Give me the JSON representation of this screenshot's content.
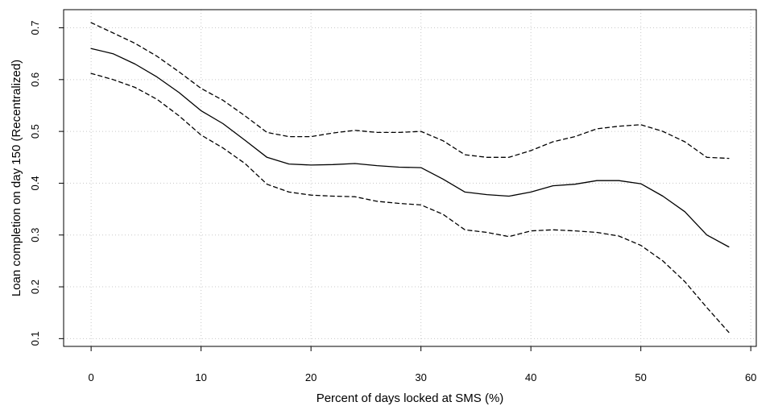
{
  "chart_data": {
    "type": "line",
    "title": "",
    "xlabel": "Percent of days locked at SMS (%)",
    "ylabel": "Loan completion on day 150 (Recentralized)",
    "xlim": [
      -2.5,
      60.5
    ],
    "ylim": [
      0.085,
      0.735
    ],
    "xticks": [
      0,
      10,
      20,
      30,
      40,
      50,
      60
    ],
    "yticks": [
      0.1,
      0.2,
      0.3,
      0.4,
      0.5,
      0.6,
      0.7
    ],
    "grid": true,
    "series": [
      {
        "style": "solid",
        "color": "#000000",
        "x": [
          0,
          2,
          4,
          6,
          8,
          10,
          12,
          14,
          16,
          18,
          20,
          22,
          24,
          26,
          28,
          30,
          32,
          34,
          36,
          38,
          40,
          42,
          44,
          46,
          48,
          50,
          52,
          54,
          56,
          58
        ],
        "y": [
          0.66,
          0.65,
          0.63,
          0.605,
          0.575,
          0.54,
          0.515,
          0.483,
          0.45,
          0.437,
          0.435,
          0.436,
          0.438,
          0.434,
          0.431,
          0.43,
          0.408,
          0.383,
          0.378,
          0.375,
          0.383,
          0.395,
          0.398,
          0.405,
          0.405,
          0.399,
          0.375,
          0.345,
          0.3,
          0.277
        ]
      },
      {
        "style": "dashed",
        "color": "#000000",
        "x": [
          0,
          2,
          4,
          6,
          8,
          10,
          12,
          14,
          16,
          18,
          20,
          22,
          24,
          26,
          28,
          30,
          32,
          34,
          36,
          38,
          40,
          42,
          44,
          46,
          48,
          50,
          52,
          54,
          56,
          58
        ],
        "y": [
          0.71,
          0.69,
          0.67,
          0.645,
          0.615,
          0.583,
          0.56,
          0.53,
          0.498,
          0.49,
          0.49,
          0.497,
          0.502,
          0.498,
          0.498,
          0.5,
          0.482,
          0.455,
          0.45,
          0.45,
          0.463,
          0.48,
          0.49,
          0.505,
          0.51,
          0.513,
          0.5,
          0.48,
          0.45,
          0.448
        ]
      },
      {
        "style": "dashed",
        "color": "#000000",
        "x": [
          0,
          2,
          4,
          6,
          8,
          10,
          12,
          14,
          16,
          18,
          20,
          22,
          24,
          26,
          28,
          30,
          32,
          34,
          36,
          38,
          40,
          42,
          44,
          46,
          48,
          50,
          52,
          54,
          56,
          58
        ],
        "y": [
          0.612,
          0.6,
          0.585,
          0.562,
          0.53,
          0.493,
          0.468,
          0.438,
          0.398,
          0.383,
          0.377,
          0.375,
          0.374,
          0.365,
          0.361,
          0.358,
          0.34,
          0.31,
          0.305,
          0.297,
          0.308,
          0.31,
          0.308,
          0.305,
          0.298,
          0.28,
          0.25,
          0.21,
          0.16,
          0.112
        ]
      }
    ]
  }
}
